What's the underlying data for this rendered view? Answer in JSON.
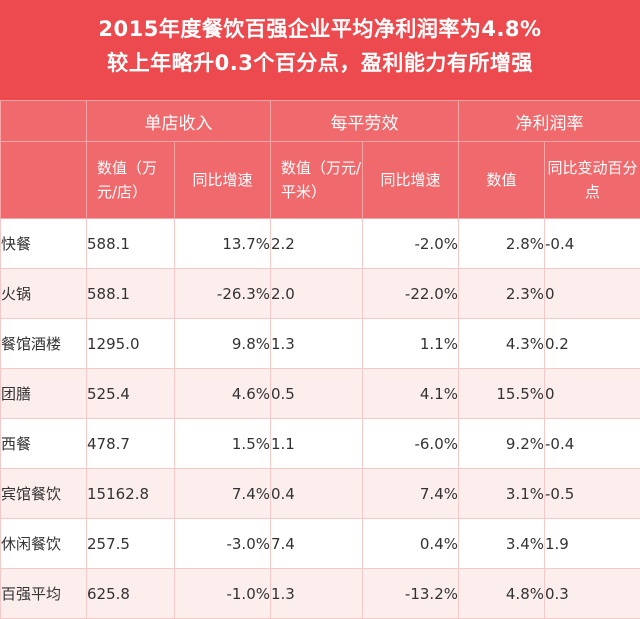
{
  "title": {
    "line1": "2015年度餐饮百强企业平均净利润率为4.8%",
    "line2": "较上年略升0.3个百分点，盈利能力有所增强"
  },
  "header": {
    "groups": [
      "单店收入",
      "每平劳效",
      "净利润率"
    ],
    "sub": [
      "数值（万元/店）",
      "同比增速",
      "数值（万元/平米）",
      "同比增速",
      "数值",
      "同比变动百分点"
    ]
  },
  "rows": [
    {
      "name": "快餐",
      "c1": "588.1",
      "c2": "13.7%",
      "c3": "2.2",
      "c4": "-2.0%",
      "c5": "2.8%",
      "c6": "-0.4"
    },
    {
      "name": "火锅",
      "c1": "588.1",
      "c2": "-26.3%",
      "c3": "2.0",
      "c4": "-22.0%",
      "c5": "2.3%",
      "c6": "0"
    },
    {
      "name": "餐馆酒楼",
      "c1": "1295.0",
      "c2": "9.8%",
      "c3": "1.3",
      "c4": "1.1%",
      "c5": "4.3%",
      "c6": "0.2"
    },
    {
      "name": "团膳",
      "c1": "525.4",
      "c2": "4.6%",
      "c3": "0.5",
      "c4": "4.1%",
      "c5": "15.5%",
      "c6": "0"
    },
    {
      "name": "西餐",
      "c1": "478.7",
      "c2": "1.5%",
      "c3": "1.1",
      "c4": "-6.0%",
      "c5": "9.2%",
      "c6": "-0.4"
    },
    {
      "name": "宾馆餐饮",
      "c1": "15162.8",
      "c2": "7.4%",
      "c3": "0.4",
      "c4": "7.4%",
      "c5": "3.1%",
      "c6": "-0.5"
    },
    {
      "name": "休闲餐饮",
      "c1": "257.5",
      "c2": "-3.0%",
      "c3": "7.4",
      "c4": "0.4%",
      "c5": "3.4%",
      "c6": "1.9"
    },
    {
      "name": "百强平均",
      "c1": "625.8",
      "c2": "-1.0%",
      "c3": "1.3",
      "c4": "-13.2%",
      "c5": "4.8%",
      "c6": "0.3"
    }
  ]
}
